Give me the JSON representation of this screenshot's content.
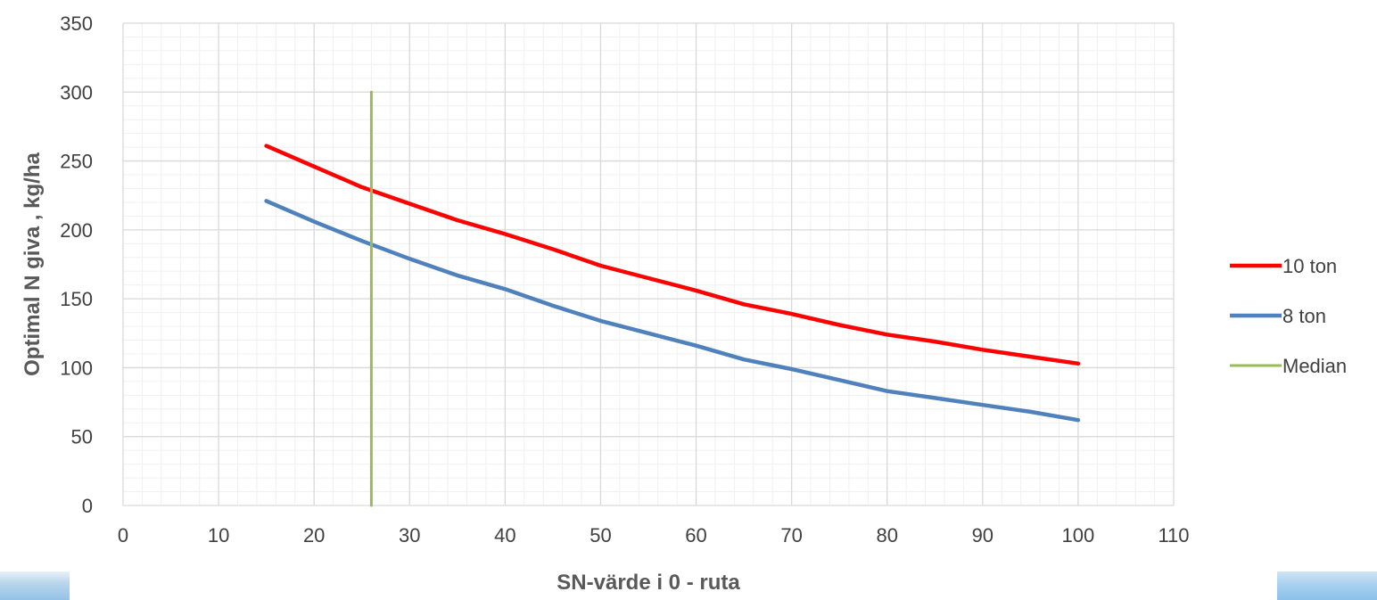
{
  "chart_data": {
    "type": "line",
    "xlabel": "SN-värde i 0 - ruta",
    "ylabel": "Optimal N giva , kg/ha",
    "xlim": [
      0,
      110
    ],
    "ylim": [
      0,
      350
    ],
    "x_ticks": [
      0,
      10,
      20,
      30,
      40,
      50,
      60,
      70,
      80,
      90,
      100,
      110
    ],
    "y_ticks": [
      0,
      50,
      100,
      150,
      200,
      250,
      300,
      350
    ],
    "grid": true,
    "minor_grid": true,
    "legend_position": "right",
    "series": [
      {
        "name": "10 ton",
        "color": "#ff0000",
        "x": [
          15,
          20,
          25,
          30,
          35,
          40,
          45,
          50,
          55,
          60,
          65,
          70,
          75,
          80,
          85,
          90,
          95,
          100
        ],
        "y": [
          261,
          246,
          231,
          219,
          207,
          197,
          186,
          174,
          165,
          156,
          146,
          139,
          131,
          124,
          119,
          113,
          108,
          103
        ]
      },
      {
        "name": "8 ton",
        "color": "#4f81bd",
        "x": [
          15,
          20,
          25,
          30,
          35,
          40,
          45,
          50,
          55,
          60,
          65,
          70,
          75,
          80,
          85,
          90,
          95,
          100
        ],
        "y": [
          221,
          206,
          192,
          179,
          167,
          157,
          145,
          134,
          125,
          116,
          106,
          99,
          91,
          83,
          78,
          73,
          68,
          62
        ]
      },
      {
        "name": "Median",
        "color": "#9bbb59",
        "x": [
          26,
          26
        ],
        "y": [
          0,
          300
        ]
      }
    ]
  }
}
